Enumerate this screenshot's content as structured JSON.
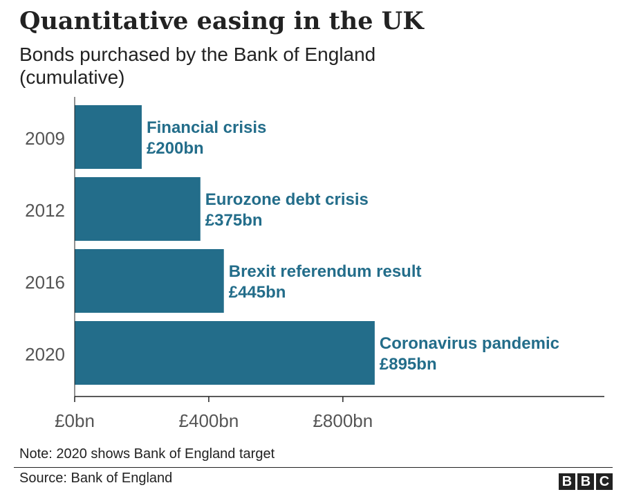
{
  "title": "Quantitative easing in the UK",
  "subtitle": "Bonds purchased by the Bank of England (cumulative)",
  "note": "Note: 2020 shows Bank of England target",
  "source": "Source: Bank of England",
  "logo": [
    "B",
    "B",
    "C"
  ],
  "colors": {
    "bar": "#236d8a",
    "label": "#236d8a",
    "axis": "#222222",
    "tick_text": "#555555"
  },
  "chart_data": {
    "type": "bar",
    "orientation": "horizontal",
    "categories": [
      "2009",
      "2012",
      "2016",
      "2020"
    ],
    "values": [
      200,
      375,
      445,
      895
    ],
    "annotations": [
      {
        "title": "Financial crisis",
        "value": "£200bn"
      },
      {
        "title": "Eurozone debt crisis",
        "value": "£375bn"
      },
      {
        "title": "Brexit referendum result",
        "value": "£445bn"
      },
      {
        "title": "Coronavirus pandemic",
        "value": "£895bn"
      }
    ],
    "xticks": [
      {
        "value": 0,
        "label": "£0bn"
      },
      {
        "value": 400,
        "label": "£400bn"
      },
      {
        "value": 800,
        "label": "£800bn"
      }
    ],
    "xlim": [
      0,
      1580
    ],
    "grid": false
  }
}
